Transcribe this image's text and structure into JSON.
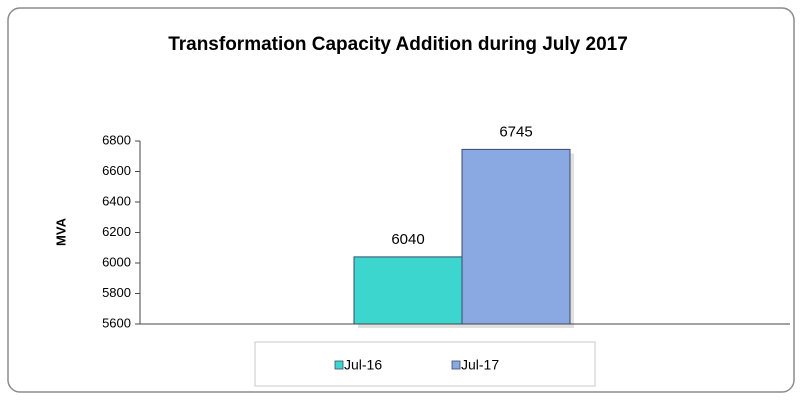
{
  "chart_data": {
    "type": "bar",
    "title": "Transformation Capacity Addition during July 2017",
    "y_label": "MVA",
    "categories": [
      null
    ],
    "series": [
      {
        "name": "Jul-16",
        "color": "#3dd6cf",
        "values": [
          6040
        ]
      },
      {
        "name": "Jul-17",
        "color": "#8aa8e2",
        "values": [
          6745
        ]
      }
    ],
    "ylim": [
      5600,
      6800
    ],
    "yticks": [
      5600,
      5800,
      6000,
      6200,
      6400,
      6600,
      6800
    ],
    "grid": false,
    "legend": "bottom"
  }
}
